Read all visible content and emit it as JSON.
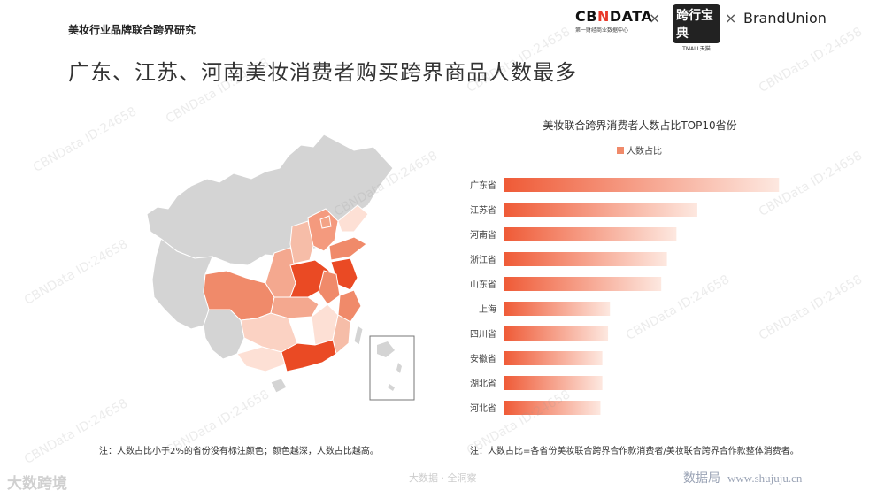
{
  "header": {
    "topic": "美妆行业品牌联合跨界研究",
    "title": "广东、江苏、河南美妆消费者购买跨界商品人数最多",
    "logos": {
      "cbn_prefix": "CB",
      "cbn_accent": "N",
      "cbn_suffix": "DATA",
      "cbn_sub": "第一财经商业数据中心",
      "times": "×",
      "tmall_main": "跨行宝典",
      "tmall_sub": "TMALL天猫",
      "brand": "BrandUnion"
    }
  },
  "map": {
    "note": "注：人数占比小于2%的省份没有标注颜色；颜色越深，人数占比越高。"
  },
  "chart_note": "注：人数占比=各省份美妆联合跨界合作款消费者/美妆联合跨界合作款整体消费者。",
  "watermark": "CBNData ID:24658",
  "footer": {
    "left": "大数跨境",
    "middle": "大数据 · 全洞察",
    "right_brand": "数据局",
    "right_url": "www.shujuju.cn"
  },
  "colors": {
    "bar_dark": "#ef5a36",
    "bar_light": "#fde8e0",
    "legend": "#f08a6a"
  },
  "chart_data": {
    "type": "bar",
    "orientation": "horizontal",
    "title": "美妆联合跨界消费者人数占比TOP10省份",
    "series": [
      {
        "name": "人数占比",
        "values": [
          14.5,
          10.2,
          9.1,
          8.6,
          8.3,
          5.6,
          5.5,
          5.2,
          5.2,
          5.1
        ]
      }
    ],
    "categories": [
      "广东省",
      "江苏省",
      "河南省",
      "浙江省",
      "山东省",
      "上海",
      "四川省",
      "安徽省",
      "湖北省",
      "河北省"
    ],
    "xlim": [
      0,
      15
    ],
    "legend_position": "top-center",
    "grid": false
  }
}
